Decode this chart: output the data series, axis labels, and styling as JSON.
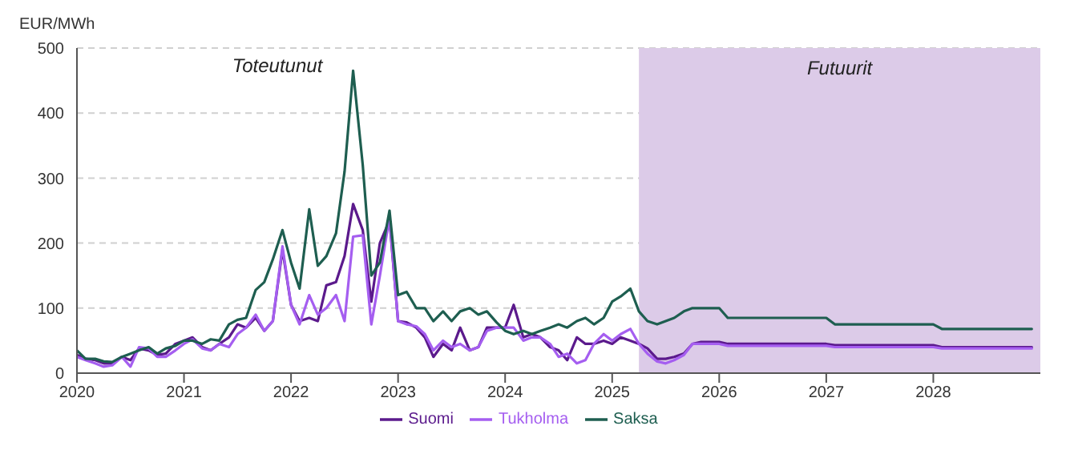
{
  "chart_data": {
    "type": "line",
    "ylabel": "EUR/MWh",
    "annotations": [
      "Toteutunut"
    ],
    "x": [
      2020.0,
      2020.08,
      2020.17,
      2020.25,
      2020.33,
      2020.42,
      2020.5,
      2020.58,
      2020.67,
      2020.75,
      2020.83,
      2020.92,
      2021.0,
      2021.08,
      2021.17,
      2021.25,
      2021.33,
      2021.42,
      2021.5,
      2021.58,
      2021.67,
      2021.75,
      2021.83,
      2021.92,
      2022.0,
      2022.08,
      2022.17,
      2022.25,
      2022.33,
      2022.42,
      2022.5,
      2022.58,
      2022.67,
      2022.75,
      2022.83,
      2022.92,
      2023.0,
      2023.08,
      2023.17,
      2023.25,
      2023.33,
      2023.42,
      2023.5,
      2023.58,
      2023.67,
      2023.75,
      2023.83,
      2023.92,
      2024.0,
      2024.08,
      2024.17,
      2024.25,
      2024.33,
      2024.42,
      2024.5,
      2024.58,
      2024.67,
      2024.75,
      2024.83,
      2024.92,
      2025.0,
      2025.08,
      2025.17,
      2025.25,
      2025.33,
      2025.42,
      2025.5,
      2025.58,
      2025.67,
      2025.75,
      2025.83,
      2025.92,
      2026.0,
      2026.08,
      2027.0,
      2027.08,
      2028.0,
      2028.08,
      2028.92
    ],
    "series": [
      {
        "name": "Suomi",
        "color": "#5b1a8c",
        "values": [
          28,
          22,
          20,
          15,
          15,
          25,
          20,
          38,
          35,
          28,
          30,
          45,
          50,
          55,
          40,
          35,
          45,
          55,
          75,
          70,
          85,
          65,
          80,
          190,
          105,
          80,
          85,
          80,
          135,
          140,
          180,
          260,
          220,
          110,
          200,
          235,
          80,
          78,
          70,
          55,
          25,
          45,
          35,
          70,
          35,
          40,
          70,
          70,
          70,
          105,
          55,
          60,
          55,
          40,
          35,
          20,
          55,
          45,
          45,
          50,
          45,
          55,
          50,
          45,
          38,
          22,
          22,
          25,
          30,
          45,
          48,
          48,
          48,
          45,
          45,
          43,
          43,
          40,
          40
        ]
      },
      {
        "name": "Tukholma",
        "color": "#a55ef0",
        "values": [
          25,
          20,
          15,
          10,
          12,
          25,
          10,
          40,
          38,
          25,
          25,
          35,
          45,
          52,
          38,
          35,
          45,
          40,
          60,
          70,
          90,
          65,
          80,
          195,
          105,
          75,
          120,
          90,
          100,
          120,
          80,
          210,
          212,
          75,
          150,
          240,
          80,
          75,
          72,
          60,
          35,
          50,
          40,
          45,
          35,
          40,
          65,
          70,
          70,
          70,
          50,
          55,
          55,
          45,
          25,
          30,
          15,
          20,
          45,
          60,
          50,
          60,
          68,
          45,
          30,
          18,
          15,
          20,
          28,
          45,
          45,
          45,
          45,
          42,
          42,
          40,
          40,
          38,
          38
        ]
      },
      {
        "name": "Saksa",
        "color": "#1e5e50",
        "values": [
          35,
          22,
          22,
          18,
          17,
          25,
          30,
          35,
          40,
          30,
          38,
          42,
          50,
          50,
          45,
          52,
          50,
          75,
          82,
          85,
          128,
          140,
          175,
          220,
          170,
          130,
          252,
          165,
          180,
          215,
          310,
          465,
          320,
          150,
          170,
          250,
          120,
          125,
          100,
          100,
          80,
          95,
          80,
          95,
          100,
          90,
          95,
          78,
          65,
          60,
          65,
          60,
          65,
          70,
          75,
          70,
          80,
          85,
          75,
          85,
          110,
          118,
          130,
          95,
          80,
          75,
          80,
          85,
          95,
          100,
          100,
          100,
          100,
          85,
          85,
          75,
          75,
          68,
          68
        ]
      }
    ],
    "bands": [
      {
        "axis": "x",
        "from": 2025.25,
        "to": 2029,
        "label": "Futuurit",
        "color": "#dccbe8"
      }
    ],
    "xlim": [
      2020,
      2029
    ],
    "xticks": [
      2020,
      2021,
      2022,
      2023,
      2024,
      2025,
      2026,
      2027,
      2028
    ],
    "ylim": [
      0,
      500
    ],
    "yticks": [
      0,
      100,
      200,
      300,
      400,
      500
    ],
    "grid": "y",
    "legend": "bottom",
    "marker": "none",
    "line_style": "solid"
  }
}
